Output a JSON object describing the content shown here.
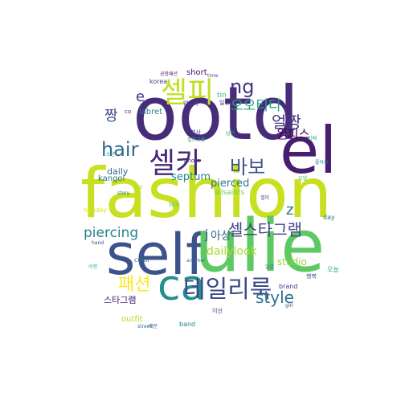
{
  "wordcloud": {
    "words": [
      {
        "text": "ootd",
        "color": "#472c7a"
      },
      {
        "text": "fashion",
        "color": "#c8e020"
      },
      {
        "text": "self",
        "color": "#3b528b"
      },
      {
        "text": "ulie",
        "color": "#5ec962"
      },
      {
        "text": "el",
        "color": "#481f70"
      },
      {
        "text": "ca",
        "color": "#21908d"
      },
      {
        "text": "셀피",
        "color": "#c2df23"
      },
      {
        "text": "셀카",
        "color": "#482878"
      },
      {
        "text": "데일리룩",
        "color": "#3e4989"
      },
      {
        "text": "바보",
        "color": "#3b528b"
      },
      {
        "text": "셀스타그램",
        "color": "#414487"
      },
      {
        "text": "style",
        "color": "#2c728e"
      },
      {
        "text": "hair",
        "color": "#31688e"
      },
      {
        "text": "얼짱",
        "color": "#443a83"
      },
      {
        "text": "ng",
        "color": "#46327e"
      },
      {
        "text": "패션",
        "color": "#fde725"
      },
      {
        "text": "piercing",
        "color": "#26828e"
      },
      {
        "text": "오오티디",
        "color": "#21a585"
      },
      {
        "text": "짱",
        "color": "#3e4989"
      },
      {
        "text": "dailylook",
        "color": "#aadc32"
      },
      {
        "text": "원피스",
        "color": "#440154"
      },
      {
        "text": "스타그램",
        "color": "#482173"
      },
      {
        "text": "pierced",
        "color": "#2a788e"
      },
      {
        "text": "septum",
        "color": "#25858e"
      },
      {
        "text": "daily",
        "color": "#31688e"
      },
      {
        "text": "studio",
        "color": "#8fd744"
      },
      {
        "text": "아상",
        "color": "#31688e"
      },
      {
        "text": "outfit",
        "color": "#b5de2b"
      },
      {
        "text": "kangol",
        "color": "#2e6f8e"
      },
      {
        "text": "labret",
        "color": "#26828e"
      },
      {
        "text": "e",
        "color": "#46337e"
      },
      {
        "text": "z",
        "color": "#2c728e"
      },
      {
        "text": "j",
        "color": "#3b528b"
      },
      {
        "text": "short",
        "color": "#471365"
      },
      {
        "text": "korea",
        "color": "#3e4a89"
      },
      {
        "text": "tin",
        "color": "#35b779"
      },
      {
        "text": "allsaints",
        "color": "#6ece58"
      },
      {
        "text": "brand",
        "color": "#443983"
      },
      {
        "text": "band",
        "color": "#26828e"
      },
      {
        "text": "color",
        "color": "#277f8e"
      },
      {
        "text": "holiday",
        "color": "#d8e219"
      },
      {
        "text": "day",
        "color": "#2b758e"
      },
      {
        "text": "오늘",
        "color": "#25ac82"
      },
      {
        "text": "행복",
        "color": "#3e4989"
      },
      {
        "text": "이선",
        "color": "#433e85"
      },
      {
        "text": "헤어",
        "color": "#5cc863"
      },
      {
        "text": "공항패션",
        "color": "#481668"
      },
      {
        "text": "소년",
        "color": "#20938c"
      },
      {
        "text": "일상",
        "color": "#482576"
      },
      {
        "text": "여상",
        "color": "#414487"
      },
      {
        "text": "photo",
        "color": "#46327e"
      },
      {
        "text": "job",
        "color": "#b2dd2d"
      },
      {
        "text": "story",
        "color": "#2e6e8e"
      },
      {
        "text": "another",
        "color": "#2c738e"
      },
      {
        "text": "girl",
        "color": "#3e4c8a"
      },
      {
        "text": "street",
        "color": "#2b748e"
      },
      {
        "text": "time",
        "color": "#39568c"
      },
      {
        "text": "hand",
        "color": "#424186"
      },
      {
        "text": "co",
        "color": "#482071"
      },
      {
        "text": "때문",
        "color": "#365d8d"
      },
      {
        "text": "셀카그램",
        "color": "#26ad81"
      },
      {
        "text": "얼스타",
        "color": "#453781"
      },
      {
        "text": "남친",
        "color": "#1fa088"
      },
      {
        "text": "셀피",
        "color": "#3b528b"
      },
      {
        "text": "모델",
        "color": "#4ac16d"
      },
      {
        "text": "카페",
        "color": "#2db27d"
      },
      {
        "text": "여행",
        "color": "#3dbc74"
      },
      {
        "text": "얼굴",
        "color": "#2c728e"
      },
      {
        "text": "좋아요",
        "color": "#23898e"
      }
    ]
  }
}
